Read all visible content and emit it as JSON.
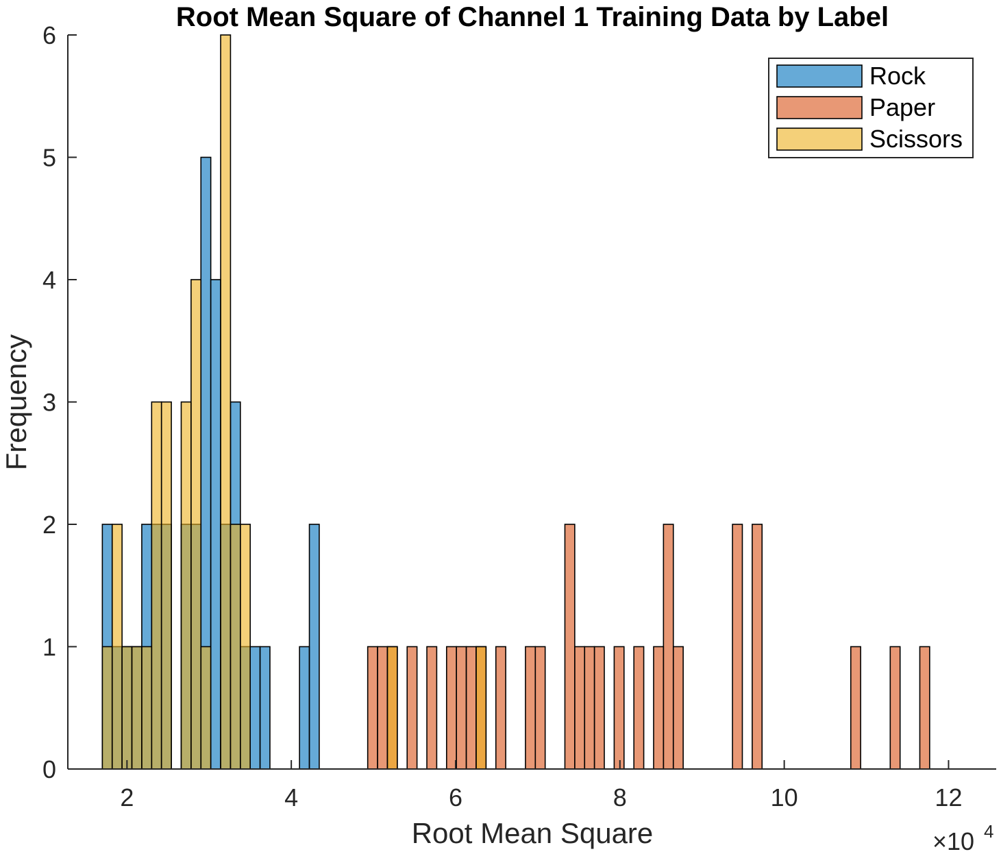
{
  "chart_data": {
    "type": "bar",
    "subtype": "overlaid-histogram",
    "title": "Root Mean Square of Channel 1 Training Data by Label",
    "xlabel": "Root Mean Square",
    "ylabel": "Frequency",
    "x_multiplier_label": "×10",
    "x_multiplier_exponent": "4",
    "x_scale": 10000,
    "xlim": [
      12800,
      125800
    ],
    "ylim": [
      0,
      6
    ],
    "xticks": [
      2,
      4,
      6,
      8,
      10,
      12
    ],
    "yticks": [
      0,
      1,
      2,
      3,
      4,
      5,
      6
    ],
    "bin_width": 1200,
    "grid": false,
    "legend_position": "top-right",
    "series": [
      {
        "name": "Rock",
        "color": "#0072BD",
        "bins": [
          {
            "x0": 17000,
            "count": 2
          },
          {
            "x0": 18200,
            "count": 1
          },
          {
            "x0": 19400,
            "count": 1
          },
          {
            "x0": 20600,
            "count": 1
          },
          {
            "x0": 21800,
            "count": 2
          },
          {
            "x0": 23000,
            "count": 2
          },
          {
            "x0": 24200,
            "count": 2
          },
          {
            "x0": 26600,
            "count": 2
          },
          {
            "x0": 27800,
            "count": 2
          },
          {
            "x0": 29000,
            "count": 5
          },
          {
            "x0": 30200,
            "count": 4
          },
          {
            "x0": 31400,
            "count": 2
          },
          {
            "x0": 32600,
            "count": 3
          },
          {
            "x0": 33800,
            "count": 1
          },
          {
            "x0": 35000,
            "count": 1
          },
          {
            "x0": 36200,
            "count": 1
          },
          {
            "x0": 41000,
            "count": 1
          },
          {
            "x0": 42200,
            "count": 2
          }
        ]
      },
      {
        "name": "Paper",
        "color": "#D95319",
        "bins": [
          {
            "x0": 49300,
            "count": 1
          },
          {
            "x0": 50500,
            "count": 1
          },
          {
            "x0": 51700,
            "count": 1
          },
          {
            "x0": 54100,
            "count": 1
          },
          {
            "x0": 56500,
            "count": 1
          },
          {
            "x0": 58900,
            "count": 1
          },
          {
            "x0": 60100,
            "count": 1
          },
          {
            "x0": 61300,
            "count": 1
          },
          {
            "x0": 62500,
            "count": 1
          },
          {
            "x0": 64900,
            "count": 1
          },
          {
            "x0": 68500,
            "count": 1
          },
          {
            "x0": 69700,
            "count": 1
          },
          {
            "x0": 73300,
            "count": 2
          },
          {
            "x0": 74500,
            "count": 1
          },
          {
            "x0": 75700,
            "count": 1
          },
          {
            "x0": 76900,
            "count": 1
          },
          {
            "x0": 79300,
            "count": 1
          },
          {
            "x0": 81700,
            "count": 1
          },
          {
            "x0": 84100,
            "count": 1
          },
          {
            "x0": 85300,
            "count": 2
          },
          {
            "x0": 86500,
            "count": 1
          },
          {
            "x0": 93700,
            "count": 2
          },
          {
            "x0": 96100,
            "count": 2
          },
          {
            "x0": 108100,
            "count": 1
          },
          {
            "x0": 112900,
            "count": 1
          },
          {
            "x0": 116500,
            "count": 1
          }
        ]
      },
      {
        "name": "Scissors",
        "color": "#EDB120",
        "bins": [
          {
            "x0": 17000,
            "count": 1
          },
          {
            "x0": 18200,
            "count": 2
          },
          {
            "x0": 19400,
            "count": 1
          },
          {
            "x0": 20600,
            "count": 1
          },
          {
            "x0": 21800,
            "count": 1
          },
          {
            "x0": 23000,
            "count": 3
          },
          {
            "x0": 24200,
            "count": 3
          },
          {
            "x0": 26600,
            "count": 3
          },
          {
            "x0": 27800,
            "count": 4
          },
          {
            "x0": 29000,
            "count": 1
          },
          {
            "x0": 31400,
            "count": 6
          },
          {
            "x0": 32600,
            "count": 2
          },
          {
            "x0": 33800,
            "count": 2
          },
          {
            "x0": 51700,
            "count": 1
          },
          {
            "x0": 62500,
            "count": 1
          }
        ]
      }
    ]
  }
}
